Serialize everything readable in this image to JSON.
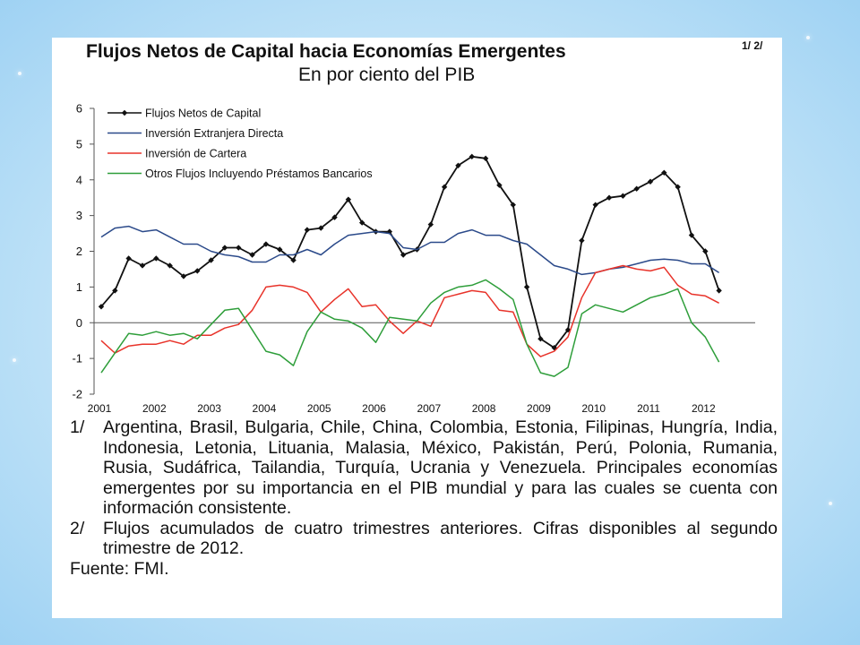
{
  "slide": {
    "title": "Flujos Netos de Capital hacia Economías Emergentes",
    "title_note": "1/ 2/",
    "subtitle": "En por ciento del PIB"
  },
  "chart_data": {
    "type": "line",
    "title": "Flujos Netos de Capital hacia Economías Emergentes",
    "subtitle": "En por ciento del PIB",
    "x_ticks": [
      "2001",
      "2002",
      "2003",
      "2004",
      "2005",
      "2006",
      "2007",
      "2008",
      "2009",
      "2010",
      "2011",
      "2012"
    ],
    "x_start": 2001.0,
    "x_step": 0.25,
    "ylim": [
      -2,
      6
    ],
    "y_ticks": [
      6,
      5,
      4,
      3,
      2,
      1,
      0,
      -1,
      -2
    ],
    "legend_position": "top-left",
    "series": [
      {
        "name": "Flujos Netos de Capital",
        "color": "#111111",
        "markers": true,
        "values": [
          0.45,
          0.9,
          1.8,
          1.6,
          1.8,
          1.6,
          1.3,
          1.45,
          1.75,
          2.1,
          2.1,
          1.9,
          2.2,
          2.05,
          1.75,
          2.6,
          2.65,
          2.95,
          3.45,
          2.8,
          2.55,
          2.55,
          1.9,
          2.05,
          2.75,
          3.8,
          4.4,
          4.65,
          4.6,
          3.85,
          3.3,
          1.0,
          -0.45,
          -0.7,
          -0.2,
          2.3,
          3.3,
          3.5,
          3.55,
          3.75,
          3.95,
          4.2,
          3.8,
          2.45,
          2.0,
          0.9
        ]
      },
      {
        "name": "Inversión Extranjera Directa",
        "color": "#2b4a8a",
        "markers": false,
        "values": [
          2.4,
          2.65,
          2.7,
          2.55,
          2.6,
          2.4,
          2.2,
          2.2,
          2.0,
          1.9,
          1.85,
          1.7,
          1.7,
          1.9,
          1.9,
          2.05,
          1.9,
          2.2,
          2.45,
          2.5,
          2.55,
          2.5,
          2.1,
          2.05,
          2.25,
          2.25,
          2.5,
          2.6,
          2.45,
          2.45,
          2.3,
          2.2,
          1.9,
          1.6,
          1.5,
          1.35,
          1.4,
          1.5,
          1.55,
          1.65,
          1.75,
          1.78,
          1.75,
          1.65,
          1.65,
          1.4
        ]
      },
      {
        "name": "Inversión de Cartera",
        "color": "#e8332a",
        "markers": false,
        "values": [
          -0.5,
          -0.85,
          -0.65,
          -0.6,
          -0.6,
          -0.5,
          -0.6,
          -0.35,
          -0.35,
          -0.15,
          -0.05,
          0.35,
          1.0,
          1.05,
          1.0,
          0.85,
          0.3,
          0.65,
          0.95,
          0.45,
          0.5,
          0.05,
          -0.3,
          0.05,
          -0.1,
          0.7,
          0.8,
          0.9,
          0.85,
          0.35,
          0.3,
          -0.6,
          -0.95,
          -0.8,
          -0.4,
          0.7,
          1.4,
          1.5,
          1.6,
          1.5,
          1.45,
          1.55,
          1.05,
          0.8,
          0.75,
          0.55
        ]
      },
      {
        "name": "Otros Flujos Incluyendo Préstamos Bancarios",
        "color": "#2e9e3a",
        "markers": false,
        "values": [
          -1.4,
          -0.85,
          -0.3,
          -0.35,
          -0.25,
          -0.35,
          -0.3,
          -0.45,
          -0.05,
          0.35,
          0.4,
          -0.2,
          -0.8,
          -0.9,
          -1.2,
          -0.25,
          0.3,
          0.1,
          0.05,
          -0.15,
          -0.55,
          0.15,
          0.1,
          0.05,
          0.55,
          0.85,
          1.0,
          1.05,
          1.2,
          0.95,
          0.65,
          -0.6,
          -1.4,
          -1.5,
          -1.25,
          0.25,
          0.5,
          0.4,
          0.3,
          0.5,
          0.7,
          0.8,
          0.95,
          0.0,
          -0.4,
          -1.1
        ]
      }
    ]
  },
  "notes": [
    {
      "num": "1/",
      "text": "Argentina, Brasil, Bulgaria, Chile, China, Colombia, Estonia, Filipinas, Hungría, India, Indonesia, Letonia, Lituania, Malasia, México, Pakistán, Perú, Polonia, Rumania, Rusia, Sudáfrica, Tailandia, Turquía, Ucrania y Venezuela. Principales economías emergentes por su importancia en el PIB mundial y para las cuales se cuenta con información consistente."
    },
    {
      "num": "2/",
      "text": "Flujos acumulados de cuatro trimestres anteriores. Cifras disponibles al segundo trimestre de 2012."
    }
  ],
  "source": "Fuente: FMI."
}
